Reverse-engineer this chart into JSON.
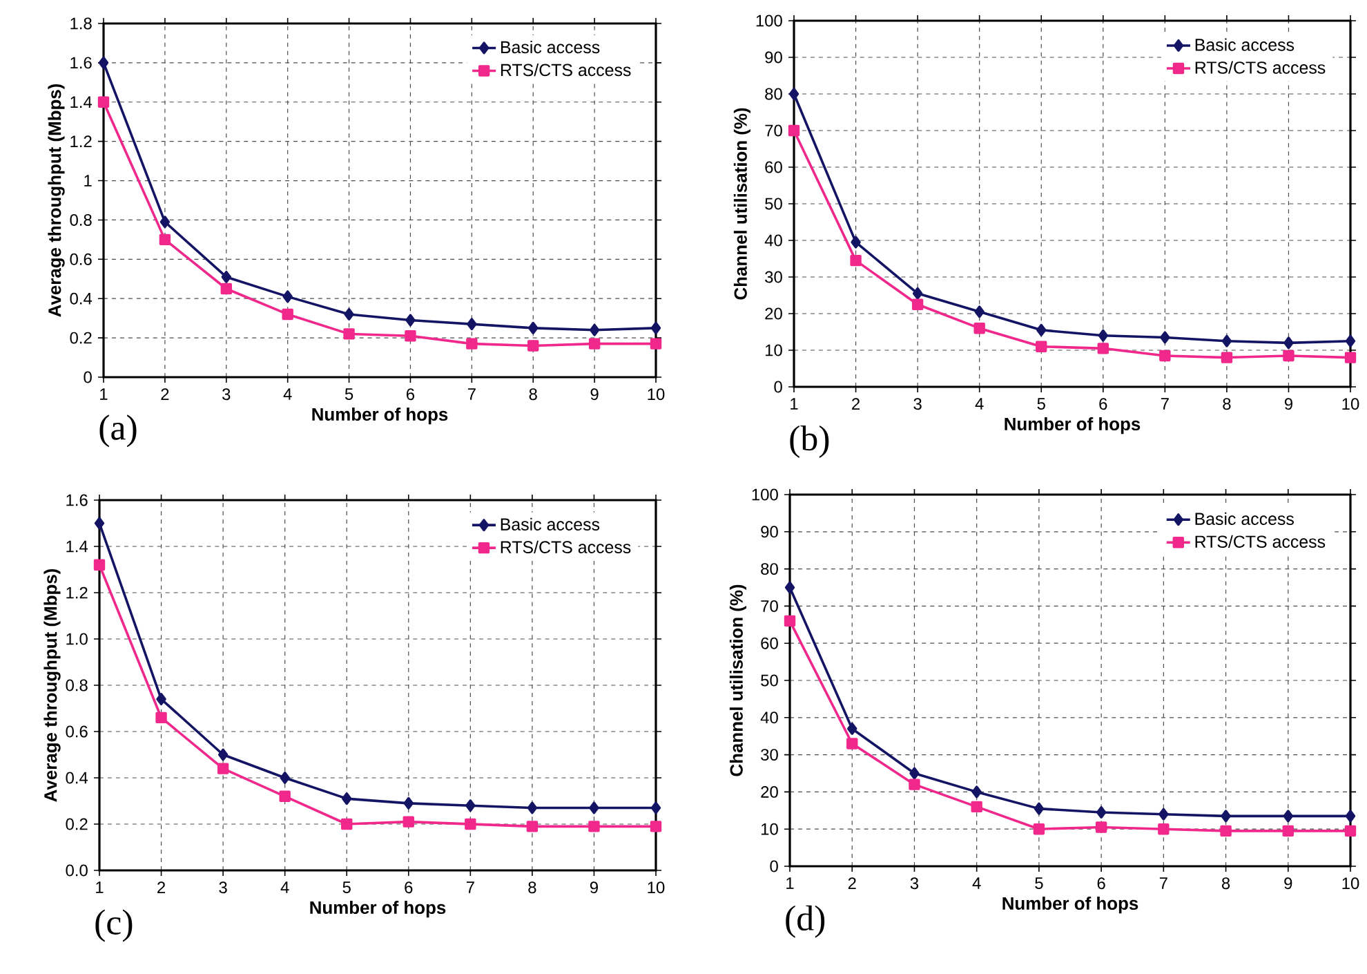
{
  "chart_data": [
    {
      "type": "line",
      "xlabel": "Number of hops",
      "ylabel": "Average throughput (Mbps)",
      "annotations": [
        "(a)"
      ],
      "x": [
        1,
        2,
        3,
        4,
        5,
        6,
        7,
        8,
        9,
        10
      ],
      "xlim": [
        1,
        10
      ],
      "xticks": [
        1,
        2,
        3,
        4,
        5,
        6,
        7,
        8,
        9,
        10
      ],
      "ylim": [
        0,
        1.8
      ],
      "yticks": [
        0,
        0.2,
        0.4,
        0.6,
        0.8,
        1,
        1.2,
        1.4,
        1.6,
        1.8
      ],
      "grid": true,
      "legend": "top right",
      "series": [
        {
          "name": "Basic access",
          "color": "#141464",
          "marker": "diamond",
          "values": [
            1.6,
            0.79,
            0.51,
            0.41,
            0.32,
            0.29,
            0.27,
            0.25,
            0.24,
            0.25
          ]
        },
        {
          "name": "RTS/CTS access",
          "color": "#f0288c",
          "marker": "square",
          "values": [
            1.4,
            0.7,
            0.45,
            0.32,
            0.22,
            0.21,
            0.17,
            0.16,
            0.17,
            0.17
          ]
        }
      ]
    },
    {
      "type": "line",
      "xlabel": "Number of hops",
      "ylabel": "Channel utilisation (%)",
      "annotations": [
        "(b)"
      ],
      "x": [
        1,
        2,
        3,
        4,
        5,
        6,
        7,
        8,
        9,
        10
      ],
      "xlim": [
        1,
        10
      ],
      "xticks": [
        1,
        2,
        3,
        4,
        5,
        6,
        7,
        8,
        9,
        10
      ],
      "ylim": [
        0,
        100
      ],
      "yticks": [
        0,
        10,
        20,
        30,
        40,
        50,
        60,
        70,
        80,
        90,
        100
      ],
      "grid": true,
      "legend": "top right",
      "series": [
        {
          "name": "Basic access",
          "color": "#141464",
          "marker": "diamond",
          "values": [
            80,
            39.5,
            25.5,
            20.5,
            15.5,
            14,
            13.5,
            12.5,
            12,
            12.5
          ]
        },
        {
          "name": "RTS/CTS access",
          "color": "#f0288c",
          "marker": "square",
          "values": [
            70,
            34.5,
            22.5,
            16,
            11,
            10.5,
            8.5,
            8,
            8.5,
            8
          ]
        }
      ]
    },
    {
      "type": "line",
      "xlabel": "Number of hops",
      "ylabel": "Average throughput (Mbps)",
      "annotations": [
        "(c)"
      ],
      "x": [
        1,
        2,
        3,
        4,
        5,
        6,
        7,
        8,
        9,
        10
      ],
      "xlim": [
        1,
        10
      ],
      "xticks": [
        1,
        2,
        3,
        4,
        5,
        6,
        7,
        8,
        9,
        10
      ],
      "ylim": [
        0,
        1.6
      ],
      "yticks": [
        {
          "value": 0,
          "label": "0.0"
        },
        0.2,
        0.4,
        0.6,
        0.8,
        {
          "value": 1,
          "label": "1.0"
        },
        1.2,
        1.4,
        1.6
      ],
      "grid": true,
      "legend": "top right",
      "series": [
        {
          "name": "Basic access",
          "color": "#141464",
          "marker": "diamond",
          "values": [
            1.5,
            0.74,
            0.5,
            0.4,
            0.31,
            0.29,
            0.28,
            0.27,
            0.27,
            0.27
          ]
        },
        {
          "name": "RTS/CTS access",
          "color": "#f0288c",
          "marker": "square",
          "values": [
            1.32,
            0.66,
            0.44,
            0.32,
            0.2,
            0.21,
            0.2,
            0.19,
            0.19,
            0.19
          ]
        }
      ]
    },
    {
      "type": "line",
      "xlabel": "Number of hops",
      "ylabel": "Channel utilisation (%)",
      "annotations": [
        "(d)"
      ],
      "x": [
        1,
        2,
        3,
        4,
        5,
        6,
        7,
        8,
        9,
        10
      ],
      "xlim": [
        1,
        10
      ],
      "xticks": [
        1,
        2,
        3,
        4,
        5,
        6,
        7,
        8,
        9,
        10
      ],
      "ylim": [
        0,
        100
      ],
      "yticks": [
        0,
        10,
        20,
        30,
        40,
        50,
        60,
        70,
        80,
        90,
        100
      ],
      "grid": true,
      "legend": "top right",
      "series": [
        {
          "name": "Basic access",
          "color": "#141464",
          "marker": "diamond",
          "values": [
            75,
            37,
            25,
            20,
            15.5,
            14.5,
            14,
            13.5,
            13.5,
            13.5
          ]
        },
        {
          "name": "RTS/CTS access",
          "color": "#f0288c",
          "marker": "square",
          "values": [
            66,
            33,
            22,
            16,
            10,
            10.5,
            10,
            9.5,
            9.5,
            9.5
          ]
        }
      ]
    }
  ]
}
